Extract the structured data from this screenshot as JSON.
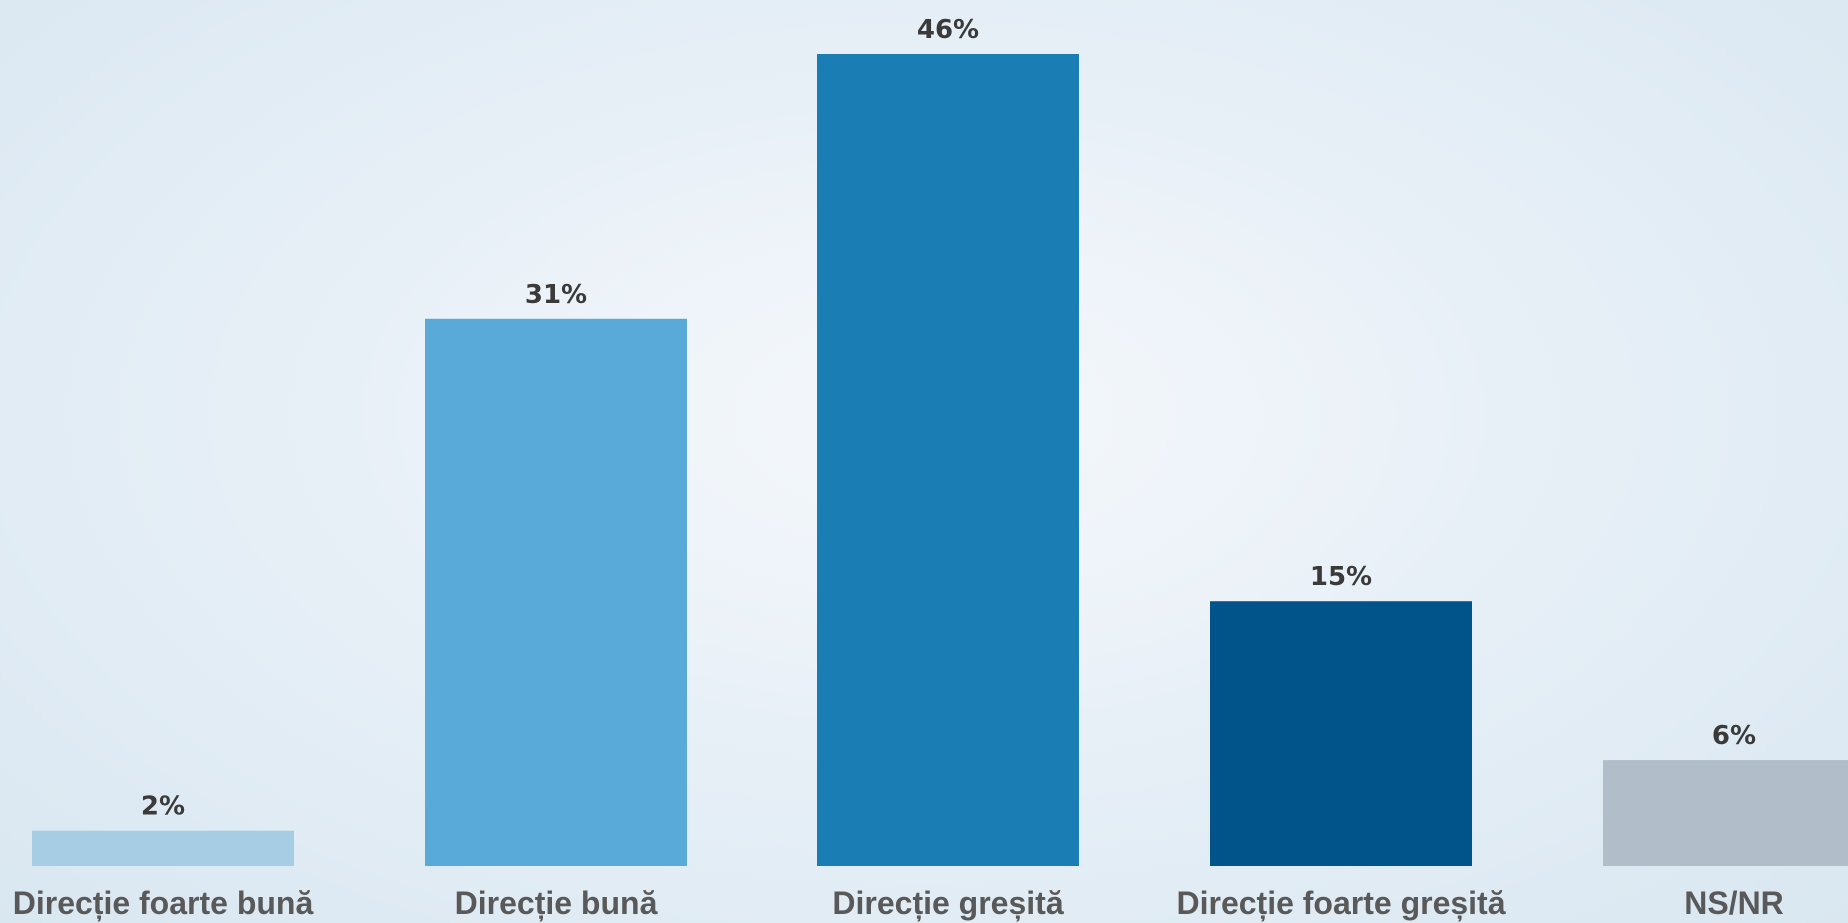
{
  "chart_data": {
    "type": "bar",
    "title": "",
    "xlabel": "",
    "ylabel": "",
    "ylim": [
      0,
      46
    ],
    "grid": false,
    "categories": [
      "Direcție foarte bună",
      "Direcție bună",
      "Direcție greșită",
      "Direcție foarte greșită",
      "NS/NR"
    ],
    "values": [
      2,
      31,
      46,
      15,
      6
    ],
    "value_labels": [
      "2%",
      "31%",
      "46%",
      "15%",
      "6%"
    ],
    "colors": [
      "#a6cde3",
      "#59aad9",
      "#1a7db4",
      "#00548a",
      "#b2bdca"
    ]
  }
}
